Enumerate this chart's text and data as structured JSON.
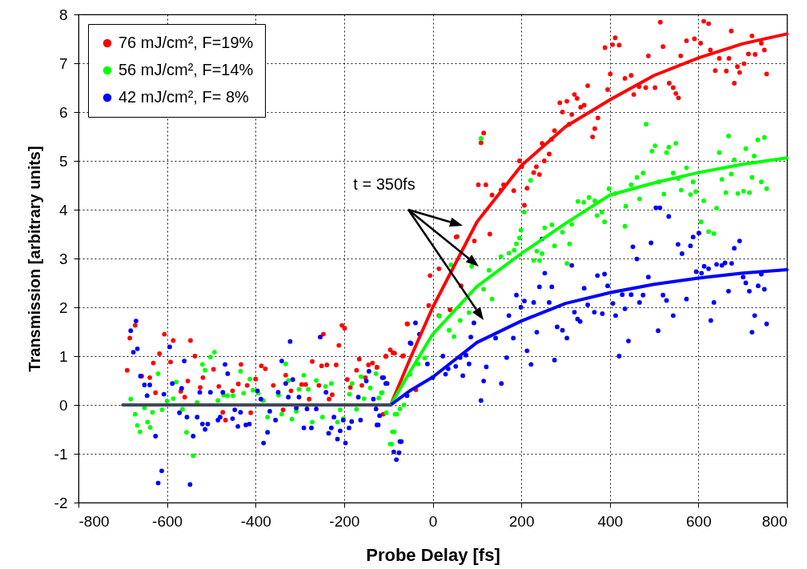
{
  "chart_data": {
    "type": "scatter",
    "xlabel": "Probe Delay [fs]",
    "ylabel": "Transmission [arbitrary units]",
    "xlim": [
      -800,
      800
    ],
    "xticks": [
      -800,
      -600,
      -400,
      -200,
      0,
      200,
      400,
      600,
      800
    ],
    "ylim": [
      -2,
      8
    ],
    "yticks": [
      -2,
      -1,
      0,
      1,
      2,
      3,
      4,
      5,
      6,
      7,
      8
    ],
    "grid": true,
    "legend": "top left",
    "annotations": [
      "t = 350fs"
    ],
    "series": [
      {
        "name": "76 mJ/cm², F=19%",
        "marker": "circle",
        "color": "#ff0000",
        "x": [
          -672,
          -684,
          -690,
          -657,
          -639,
          -631,
          -626,
          -617,
          -606,
          -592,
          -586,
          -569,
          -560,
          -553,
          -547,
          -537,
          -519,
          -525,
          -495,
          -483,
          -474,
          -468,
          -452,
          -433,
          -439,
          -419,
          -411,
          -400,
          -387,
          -378,
          -360,
          -338,
          -332,
          -320,
          -296,
          -287,
          -279,
          -272,
          -257,
          -251,
          -247,
          -239,
          -234,
          -227,
          -218,
          -212,
          -205,
          -199,
          -193,
          -186,
          -172,
          -166,
          -160,
          -152,
          -145,
          -136,
          -126,
          -106,
          -96,
          -86,
          -68,
          -58,
          -112,
          -57,
          -106,
          -90,
          -66,
          -38,
          -126,
          -9,
          14,
          39,
          -6,
          14,
          64,
          53,
          129,
          94,
          55,
          103,
          120,
          115,
          109,
          134,
          160,
          154,
          183,
          207,
          213,
          196,
          201,
          234,
          228,
          241,
          252,
          263,
          247,
          268,
          275,
          287,
          303,
          293,
          314,
          308,
          320,
          326,
          334,
          342,
          350,
          373,
          366,
          361,
          389,
          406,
          421,
          412,
          401,
          395,
          434,
          448,
          454,
          466,
          481,
          502,
          487,
          514,
          520,
          534,
          543,
          549,
          555,
          560,
          573,
          591,
          605,
          612,
          623,
          627,
          638,
          647,
          663,
          669,
          674,
          681,
          688,
          693,
          703,
          713,
          721,
          728,
          742,
          749,
          754
        ],
        "values": [
          1.63,
          1.37,
          0.71,
          0.59,
          0.56,
          0.86,
          0.25,
          1.05,
          1.45,
          0.88,
          1.32,
          0.28,
          0.16,
          0.49,
          1.32,
          1.0,
          0.56,
          0.36,
          0.73,
          0.38,
          -0.15,
          -0.31,
          0.29,
          0.83,
          0.43,
          0.4,
          -0.16,
          0.53,
          0.8,
          0.74,
          0.4,
          -0.1,
          0.61,
          0.29,
          0.42,
          0.42,
          0.12,
          0.89,
          0.4,
          0.8,
          1.45,
          0.82,
          0.12,
          0.21,
          0.82,
          1.22,
          1.63,
          1.57,
          0.52,
          0.36,
          0.71,
          0.94,
          0.4,
          0.56,
          0.82,
          0.86,
          0.77,
          0.99,
          1.13,
          1.06,
          1.0,
          1.66,
          -0.19,
          1.66,
          1.0,
          1.07,
          1.01,
          0.31,
          0.77,
          2.04,
          1.83,
          1.95,
          2.65,
          2.79,
          2.44,
          3.44,
          3.5,
          3.36,
          3.45,
          4.51,
          4.51,
          5.57,
          5.37,
          4.3,
          4.51,
          4.4,
          4.39,
          4.09,
          4.44,
          5.0,
          4.88,
          4.88,
          4.76,
          4.72,
          5.0,
          5.14,
          5.36,
          5.44,
          5.62,
          6.19,
          6.22,
          6.0,
          5.95,
          5.75,
          6.36,
          6.28,
          6.1,
          6.14,
          6.54,
          5.88,
          5.66,
          5.49,
          7.32,
          7.38,
          7.37,
          7.52,
          6.78,
          6.46,
          6.69,
          6.75,
          6.36,
          6.52,
          6.5,
          6.5,
          7.15,
          7.84,
          7.34,
          6.59,
          6.5,
          6.38,
          6.29,
          7.15,
          7.46,
          7.5,
          7.41,
          7.86,
          7.81,
          7.27,
          6.85,
          7.1,
          6.84,
          7.1,
          7.66,
          6.59,
          6.93,
          6.81,
          6.99,
          7.19,
          7.56,
          7.18,
          7.41,
          7.27,
          6.78
        ]
      },
      {
        "name": "56 mJ/cm², F=14%",
        "marker": "circle",
        "color": "#00ff00",
        "x": [
          -682,
          -672,
          -667,
          -661,
          -651,
          -644,
          -638,
          -633,
          -620,
          -611,
          -600,
          -586,
          -579,
          -565,
          -556,
          -541,
          -532,
          -520,
          -514,
          -502,
          -493,
          -485,
          -472,
          -463,
          -451,
          -434,
          -427,
          -413,
          -406,
          -394,
          -383,
          -373,
          -348,
          -341,
          -332,
          -326,
          -318,
          -308,
          -302,
          -291,
          -281,
          -272,
          -263,
          -249,
          -242,
          -229,
          -215,
          -209,
          -202,
          -188,
          -182,
          -172,
          -162,
          -155,
          -141,
          -128,
          -122,
          -114,
          -105,
          -87,
          -93,
          -81,
          -65,
          -116,
          -85,
          -91,
          -96,
          -74,
          -51,
          -33,
          -18,
          15,
          37,
          62,
          82,
          48,
          41,
          88,
          115,
          127,
          134,
          154,
          172,
          184,
          189,
          196,
          199,
          207,
          235,
          247,
          228,
          241,
          253,
          269,
          275,
          293,
          303,
          309,
          314,
          328,
          341,
          353,
          366,
          371,
          382,
          388,
          434,
          436,
          467,
          522,
          482,
          502,
          495,
          533,
          528,
          549,
          475,
          461,
          448,
          398,
          412,
          511,
          543,
          555,
          561,
          573,
          588,
          582,
          594,
          612,
          606,
          623,
          635,
          641,
          647,
          653,
          662,
          668,
          674,
          681,
          689,
          702,
          707,
          715,
          721,
          726,
          734,
          742,
          749,
          754,
          109,
          221
        ],
        "values": [
          0.12,
          -0.19,
          -0.42,
          -0.55,
          -0.06,
          -0.35,
          -0.46,
          -0.15,
          0.64,
          -0.1,
          0.08,
          0.13,
          0.47,
          -0.09,
          -0.56,
          -1.04,
          0.05,
          0.83,
          0.71,
          0.98,
          1.08,
          0.09,
          0.2,
          0.19,
          0.19,
          0.69,
          0.24,
          0.53,
          0.3,
          0.24,
          0.09,
          -0.25,
          0.2,
          -0.19,
          0.84,
          0.5,
          -0.29,
          -0.13,
          0.32,
          0.61,
          0.32,
          -0.35,
          0.5,
          -0.25,
          0.38,
          0.44,
          -0.35,
          -0.1,
          -0.28,
          0.22,
          0.44,
          -0.09,
          0.58,
          0.13,
          0.35,
          0.64,
          0.14,
          0.25,
          -0.16,
          -0.55,
          -0.8,
          -0.19,
          0.0,
          0.25,
          -0.19,
          -0.55,
          -0.8,
          -0.08,
          0.63,
          0.84,
          0.96,
          1.82,
          1.53,
          1.73,
          1.89,
          1.4,
          2.87,
          2.84,
          2.37,
          2.76,
          2.17,
          3.04,
          3.11,
          3.17,
          3.3,
          3.42,
          3.58,
          3.95,
          3.15,
          3.1,
          2.96,
          2.96,
          3.63,
          3.69,
          3.26,
          3.54,
          2.9,
          3.3,
          3.7,
          4.17,
          4.15,
          4.25,
          4.18,
          3.88,
          3.95,
          3.75,
          3.66,
          4.07,
          4.22,
          4.32,
          5.75,
          5.31,
          5.2,
          5.28,
          5.17,
          5.36,
          4.75,
          4.66,
          4.51,
          4.43,
          4.33,
          4.57,
          4.75,
          4.64,
          4.4,
          4.86,
          4.57,
          4.31,
          4.37,
          4.18,
          3.75,
          3.55,
          3.51,
          4.03,
          5.17,
          4.62,
          4.35,
          5.51,
          4.73,
          5.02,
          4.33,
          4.38,
          5.25,
          4.35,
          4.66,
          5.1,
          5.43,
          4.57,
          5.48,
          4.43,
          5.46,
          4.6
        ]
      },
      {
        "name": "42 mJ/cm², F= 8%",
        "marker": "circle",
        "color": "#0000ff",
        "x": [
          -670,
          -682,
          -676,
          -667,
          -660,
          -651,
          -639,
          -645,
          -626,
          -612,
          -620,
          -607,
          -594,
          -588,
          -572,
          -567,
          -561,
          -555,
          -548,
          -541,
          -532,
          -526,
          -520,
          -514,
          -508,
          -502,
          -485,
          -480,
          -474,
          -469,
          -463,
          -452,
          -447,
          -440,
          -434,
          -422,
          -414,
          -396,
          -388,
          -382,
          -373,
          -368,
          -355,
          -349,
          -341,
          -332,
          -326,
          -322,
          -316,
          -308,
          -302,
          -291,
          -284,
          -274,
          -263,
          -254,
          -241,
          -235,
          -229,
          -223,
          -215,
          -209,
          -202,
          -197,
          -189,
          -183,
          -168,
          -163,
          -150,
          -144,
          -134,
          -128,
          -123,
          -111,
          -103,
          -88,
          -82,
          -76,
          -71,
          -49,
          -114,
          -106,
          -120,
          -126,
          -74,
          -58,
          -39,
          -51,
          -30,
          -12,
          0,
          23,
          29,
          35,
          52,
          62,
          68,
          75,
          82,
          93,
          86,
          109,
          115,
          121,
          142,
          155,
          167,
          172,
          182,
          189,
          199,
          207,
          213,
          222,
          228,
          235,
          241,
          247,
          253,
          263,
          269,
          275,
          281,
          293,
          303,
          314,
          320,
          327,
          333,
          342,
          350,
          365,
          372,
          383,
          388,
          395,
          407,
          413,
          421,
          428,
          434,
          442,
          448,
          452,
          461,
          467,
          475,
          487,
          493,
          504,
          513,
          509,
          520,
          528,
          533,
          543,
          554,
          563,
          573,
          582,
          588,
          601,
          595,
          607,
          613,
          623,
          628,
          635,
          641,
          653,
          660,
          668,
          675,
          681,
          693,
          701,
          707,
          715,
          721,
          727,
          735,
          742,
          749,
          754
        ],
        "values": [
          1.72,
          1.52,
          1.08,
          1.15,
          0.59,
          0.41,
          0.41,
          0.19,
          -0.64,
          -1.35,
          -1.6,
          0.22,
          1.19,
          0.44,
          -0.16,
          0.34,
          0.9,
          -0.25,
          -1.63,
          -0.64,
          -0.25,
          0.26,
          -0.39,
          -0.5,
          -0.39,
          0.26,
          -0.31,
          -0.25,
          0.26,
          0.83,
          0.64,
          -0.28,
          -0.1,
          -0.44,
          -0.15,
          -0.41,
          -0.39,
          0.29,
          0.12,
          -0.78,
          -0.56,
          -0.13,
          -0.31,
          0.26,
          0.9,
          0.44,
          0.16,
          1.3,
          0.52,
          -0.06,
          0.16,
          -0.47,
          -0.08,
          -0.47,
          -0.08,
          1.39,
          0.26,
          -0.58,
          -0.47,
          -0.25,
          -0.7,
          -0.53,
          -0.31,
          -0.78,
          -0.47,
          -0.34,
          0.16,
          -0.31,
          0.49,
          0.69,
          0.12,
          -0.08,
          -0.41,
          0.56,
          0.44,
          -0.96,
          -1.12,
          -0.98,
          -0.75,
          1.26,
          0.56,
          0.44,
          -0.22,
          -0.41,
          -0.75,
          0.19,
          1.68,
          1.27,
          1.45,
          0.84,
          0.56,
          1.0,
          0.63,
          0.74,
          0.79,
          0.97,
          0.6,
          1.02,
          0.84,
          1.68,
          1.39,
          0.09,
          0.49,
          0.78,
          1.37,
          0.44,
          0.97,
          1.83,
          1.37,
          2.25,
          2.0,
          2.13,
          1.11,
          0.83,
          2.1,
          1.49,
          2.42,
          3.4,
          2.7,
          2.1,
          2.42,
          0.92,
          1.6,
          1.53,
          1.37,
          2.86,
          1.9,
          1.76,
          1.71,
          2.39,
          2.05,
          1.9,
          2.65,
          1.87,
          2.68,
          2.44,
          2.08,
          1.83,
          1.0,
          2.26,
          1.97,
          1.31,
          2.26,
          3.24,
          2.99,
          2.1,
          2.25,
          2.62,
          3.32,
          4.04,
          4.04,
          1.52,
          2.25,
          2.14,
          3.86,
          1.83,
          3.29,
          3.1,
          2.17,
          3.26,
          3.44,
          3.52,
          2.73,
          2.7,
          2.84,
          2.79,
          1.73,
          2.1,
          2.88,
          2.86,
          2.91,
          2.33,
          2.9,
          3.21,
          3.36,
          2.62,
          2.5,
          2.33,
          1.49,
          1.83,
          2.44,
          2.68,
          2.37,
          1.66
        ]
      },
      {
        "type": "line",
        "color": "#ff0000",
        "x": [
          -95,
          -50,
          0,
          100,
          200,
          300,
          400,
          500,
          600,
          700,
          800
        ],
        "values": [
          0,
          0.97,
          2.0,
          3.75,
          4.9,
          5.7,
          6.25,
          6.75,
          7.11,
          7.4,
          7.6
        ]
      },
      {
        "type": "line",
        "color": "#00ff00",
        "x": [
          -95,
          -50,
          0,
          100,
          200,
          300,
          400,
          500,
          600,
          700,
          800
        ],
        "values": [
          0,
          0.7,
          1.45,
          2.43,
          3.1,
          3.72,
          4.3,
          4.55,
          4.76,
          4.93,
          5.06
        ]
      },
      {
        "type": "line",
        "color": "#0000ff",
        "x": [
          -95,
          -50,
          0,
          100,
          200,
          300,
          400,
          500,
          600,
          700,
          800
        ],
        "values": [
          0,
          0.3,
          0.57,
          1.28,
          1.72,
          2.08,
          2.3,
          2.47,
          2.6,
          2.7,
          2.77
        ]
      },
      {
        "type": "line",
        "color": "#404858",
        "x": [
          -700,
          -95
        ],
        "values": [
          0,
          0
        ]
      }
    ]
  }
}
